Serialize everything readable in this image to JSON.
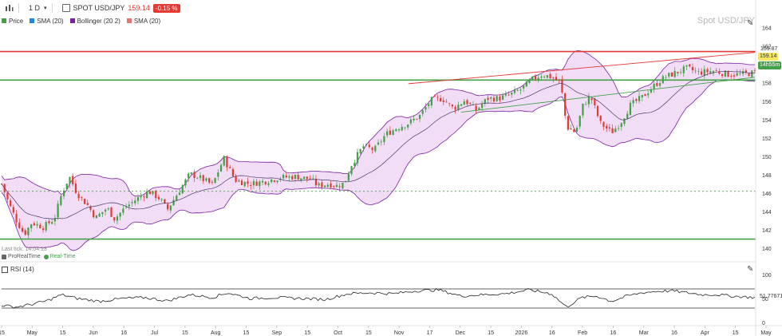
{
  "toolbar": {
    "interval": "1 D",
    "instrument": "SPOT USD/JPY",
    "last_price": "159.14",
    "change": "-0.15 %"
  },
  "legend": {
    "items": [
      {
        "label": "Price",
        "color": "#43a047"
      },
      {
        "label": "SMA (20)",
        "color": "#1e88e5"
      },
      {
        "label": "Bollinger (20 2)",
        "color": "#7b1fa2"
      },
      {
        "label": "SMA (20)",
        "color": "#e57373"
      }
    ]
  },
  "watermark": "Spot USD/JPY",
  "last_tick": "Last tick: 14:04:13",
  "status": {
    "prorealtime": "ProRealTime",
    "realtime": "Real-Time"
  },
  "rsi": {
    "label": "RSI (14)",
    "value": "51.77671"
  },
  "price_tags": {
    "upper": "159.87",
    "current": "159.14",
    "countdown": "14h55m"
  },
  "colors": {
    "bull": "#43a047",
    "bear": "#e53935",
    "band_fill": "#ecd3f3",
    "band_line": "#7b1fa2",
    "sma_blue": "#1e88e5",
    "resistance": "#e53935",
    "support": "#43a047"
  },
  "chart_data": {
    "type": "candlestick",
    "y_axis_ticks": [
      "164",
      "162",
      "160",
      "158",
      "156",
      "154",
      "152",
      "150",
      "148",
      "146",
      "144",
      "142",
      "140"
    ],
    "rsi_axis_ticks": [
      "100",
      "50",
      "0"
    ],
    "x_axis_labels": [
      "15",
      "May",
      "15",
      "Jun",
      "16",
      "Jul",
      "15",
      "Aug",
      "15",
      "Sep",
      "15",
      "Oct",
      "15",
      "Nov",
      "17",
      "Dec",
      "15",
      "2026",
      "16",
      "Feb",
      "16",
      "Mar",
      "16",
      "Apr",
      "15",
      "May"
    ],
    "ylim": [
      139.4,
      164.4
    ],
    "horizontal_levels": [
      {
        "value": 161.4,
        "color": "#e53935",
        "style": "solid"
      },
      {
        "value": 158.3,
        "color": "#43a047",
        "style": "solid"
      },
      {
        "value": 141.0,
        "color": "#43a047",
        "style": "solid"
      },
      {
        "value": 146.2,
        "color": "#43a047",
        "style": "dotted"
      }
    ],
    "trendlines": [
      {
        "from": [
          0.54,
          157.9
        ],
        "to": [
          1.0,
          161.3
        ],
        "color": "#e53935"
      },
      {
        "from": [
          0.61,
          154.8
        ],
        "to": [
          1.0,
          158.6
        ],
        "color": "#43a047"
      }
    ],
    "close_keypoints": [
      [
        0.0,
        147.0
      ],
      [
        0.01,
        144.8
      ],
      [
        0.02,
        143.0
      ],
      [
        0.03,
        141.5
      ],
      [
        0.04,
        142.8
      ],
      [
        0.055,
        142.3
      ],
      [
        0.07,
        143.2
      ],
      [
        0.08,
        146.0
      ],
      [
        0.09,
        147.8
      ],
      [
        0.1,
        146.0
      ],
      [
        0.115,
        144.6
      ],
      [
        0.125,
        143.3
      ],
      [
        0.14,
        144.4
      ],
      [
        0.15,
        143.2
      ],
      [
        0.165,
        144.5
      ],
      [
        0.18,
        145.4
      ],
      [
        0.195,
        146.2
      ],
      [
        0.21,
        145.4
      ],
      [
        0.22,
        144.2
      ],
      [
        0.23,
        145.5
      ],
      [
        0.25,
        148.1
      ],
      [
        0.265,
        147.6
      ],
      [
        0.28,
        146.9
      ],
      [
        0.295,
        149.8
      ],
      [
        0.31,
        147.4
      ],
      [
        0.33,
        147.0
      ],
      [
        0.35,
        147.3
      ],
      [
        0.37,
        147.7
      ],
      [
        0.39,
        147.8
      ],
      [
        0.41,
        147.5
      ],
      [
        0.42,
        146.8
      ],
      [
        0.435,
        147.0
      ],
      [
        0.445,
        146.8
      ],
      [
        0.455,
        147.1
      ],
      [
        0.465,
        149.2
      ],
      [
        0.48,
        151.1
      ],
      [
        0.495,
        150.7
      ],
      [
        0.51,
        152.4
      ],
      [
        0.525,
        153.1
      ],
      [
        0.54,
        153.6
      ],
      [
        0.555,
        154.4
      ],
      [
        0.57,
        156.1
      ],
      [
        0.585,
        156.3
      ],
      [
        0.6,
        155.2
      ],
      [
        0.615,
        156.1
      ],
      [
        0.63,
        155.0
      ],
      [
        0.645,
        156.3
      ],
      [
        0.66,
        156.3
      ],
      [
        0.675,
        156.7
      ],
      [
        0.69,
        157.3
      ],
      [
        0.705,
        158.4
      ],
      [
        0.718,
        158.9
      ],
      [
        0.73,
        158.6
      ],
      [
        0.742,
        158.1
      ],
      [
        0.75,
        153.2
      ],
      [
        0.762,
        152.6
      ],
      [
        0.772,
        155.6
      ],
      [
        0.782,
        156.5
      ],
      [
        0.795,
        153.6
      ],
      [
        0.81,
        152.6
      ],
      [
        0.822,
        153.7
      ],
      [
        0.835,
        155.6
      ],
      [
        0.85,
        156.4
      ],
      [
        0.865,
        157.6
      ],
      [
        0.88,
        158.6
      ],
      [
        0.895,
        159.1
      ],
      [
        0.91,
        159.6
      ],
      [
        0.925,
        159.1
      ],
      [
        0.945,
        159.3
      ],
      [
        0.965,
        158.9
      ],
      [
        0.98,
        158.9
      ],
      [
        1.0,
        159.1
      ]
    ],
    "rsi_keypoints": [
      [
        0.0,
        36
      ],
      [
        0.02,
        32
      ],
      [
        0.04,
        38
      ],
      [
        0.06,
        45
      ],
      [
        0.08,
        58
      ],
      [
        0.1,
        50
      ],
      [
        0.13,
        44
      ],
      [
        0.16,
        50
      ],
      [
        0.19,
        52
      ],
      [
        0.22,
        45
      ],
      [
        0.25,
        58
      ],
      [
        0.28,
        52
      ],
      [
        0.3,
        62
      ],
      [
        0.33,
        50
      ],
      [
        0.36,
        52
      ],
      [
        0.4,
        50
      ],
      [
        0.43,
        48
      ],
      [
        0.46,
        60
      ],
      [
        0.49,
        62
      ],
      [
        0.52,
        60
      ],
      [
        0.55,
        66
      ],
      [
        0.58,
        68
      ],
      [
        0.61,
        55
      ],
      [
        0.64,
        58
      ],
      [
        0.67,
        60
      ],
      [
        0.7,
        68
      ],
      [
        0.73,
        60
      ],
      [
        0.75,
        32
      ],
      [
        0.77,
        52
      ],
      [
        0.79,
        55
      ],
      [
        0.81,
        44
      ],
      [
        0.83,
        55
      ],
      [
        0.85,
        62
      ],
      [
        0.87,
        65
      ],
      [
        0.89,
        66
      ],
      [
        0.91,
        62
      ],
      [
        0.93,
        58
      ],
      [
        0.95,
        58
      ],
      [
        0.97,
        55
      ],
      [
        1.0,
        52
      ]
    ],
    "rsi_levels": [
      70,
      30
    ]
  }
}
